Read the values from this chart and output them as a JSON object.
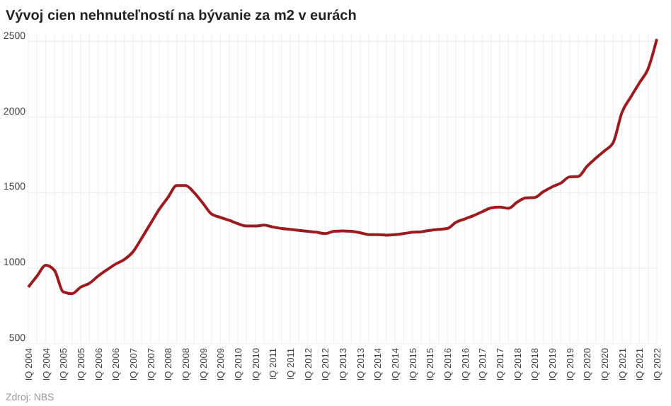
{
  "chart_data": {
    "type": "line",
    "title": "Vývoj cien nehnuteľností na bývanie za m2 v eurách",
    "categories": [
      "IQ 2004",
      null,
      "IQ 2004",
      null,
      "IQ 2005",
      null,
      "IQ 2005",
      null,
      "IQ 2006",
      null,
      "IQ 2006",
      null,
      "IQ 2007",
      null,
      "IQ 2007",
      null,
      "IQ 2008",
      null,
      "IQ 2008",
      null,
      "IQ 2009",
      null,
      "IQ 2009",
      null,
      "IQ 2010",
      null,
      "IQ 2010",
      null,
      "IQ 2011",
      null,
      "IQ 2011",
      null,
      "IQ 2012",
      null,
      "IQ 2012",
      null,
      "IQ 2013",
      null,
      "IQ 2013",
      null,
      "IQ 2014",
      null,
      "IQ 2014",
      null,
      "IQ 2015",
      null,
      "IQ 2015",
      null,
      "IQ 2016",
      null,
      "IQ 2016",
      null,
      "IQ 2017",
      null,
      "IQ 2017",
      null,
      "IQ 2018",
      null,
      "IQ 2018",
      null,
      "IQ 2019",
      null,
      "IQ 2019",
      null,
      "IQ 2020",
      null,
      "IQ 2020",
      null,
      "IQ 2021",
      null,
      "IQ 2021",
      null,
      "IQ 2022"
    ],
    "series": [
      {
        "color": "#9b1b1f",
        "values": [
          875,
          948,
          1020,
          985,
          843,
          831,
          875,
          900,
          948,
          989,
          1027,
          1058,
          1109,
          1200,
          1295,
          1390,
          1468,
          1547,
          1547,
          1500,
          1430,
          1358,
          1336,
          1317,
          1295,
          1279,
          1279,
          1285,
          1273,
          1263,
          1257,
          1250,
          1244,
          1238,
          1229,
          1244,
          1247,
          1244,
          1235,
          1222,
          1222,
          1219,
          1222,
          1229,
          1238,
          1241,
          1250,
          1257,
          1263,
          1304,
          1326,
          1348,
          1374,
          1399,
          1405,
          1396,
          1437,
          1465,
          1468,
          1506,
          1538,
          1563,
          1604,
          1607,
          1674,
          1727,
          1777,
          1831,
          2030,
          2131,
          2226,
          2320,
          2516
        ]
      }
    ],
    "ylim": [
      500,
      2550
    ],
    "yticks": [
      500,
      1000,
      1500,
      2000,
      2500
    ],
    "grid": true,
    "annotations": [
      "Zdroj: NBS"
    ]
  }
}
